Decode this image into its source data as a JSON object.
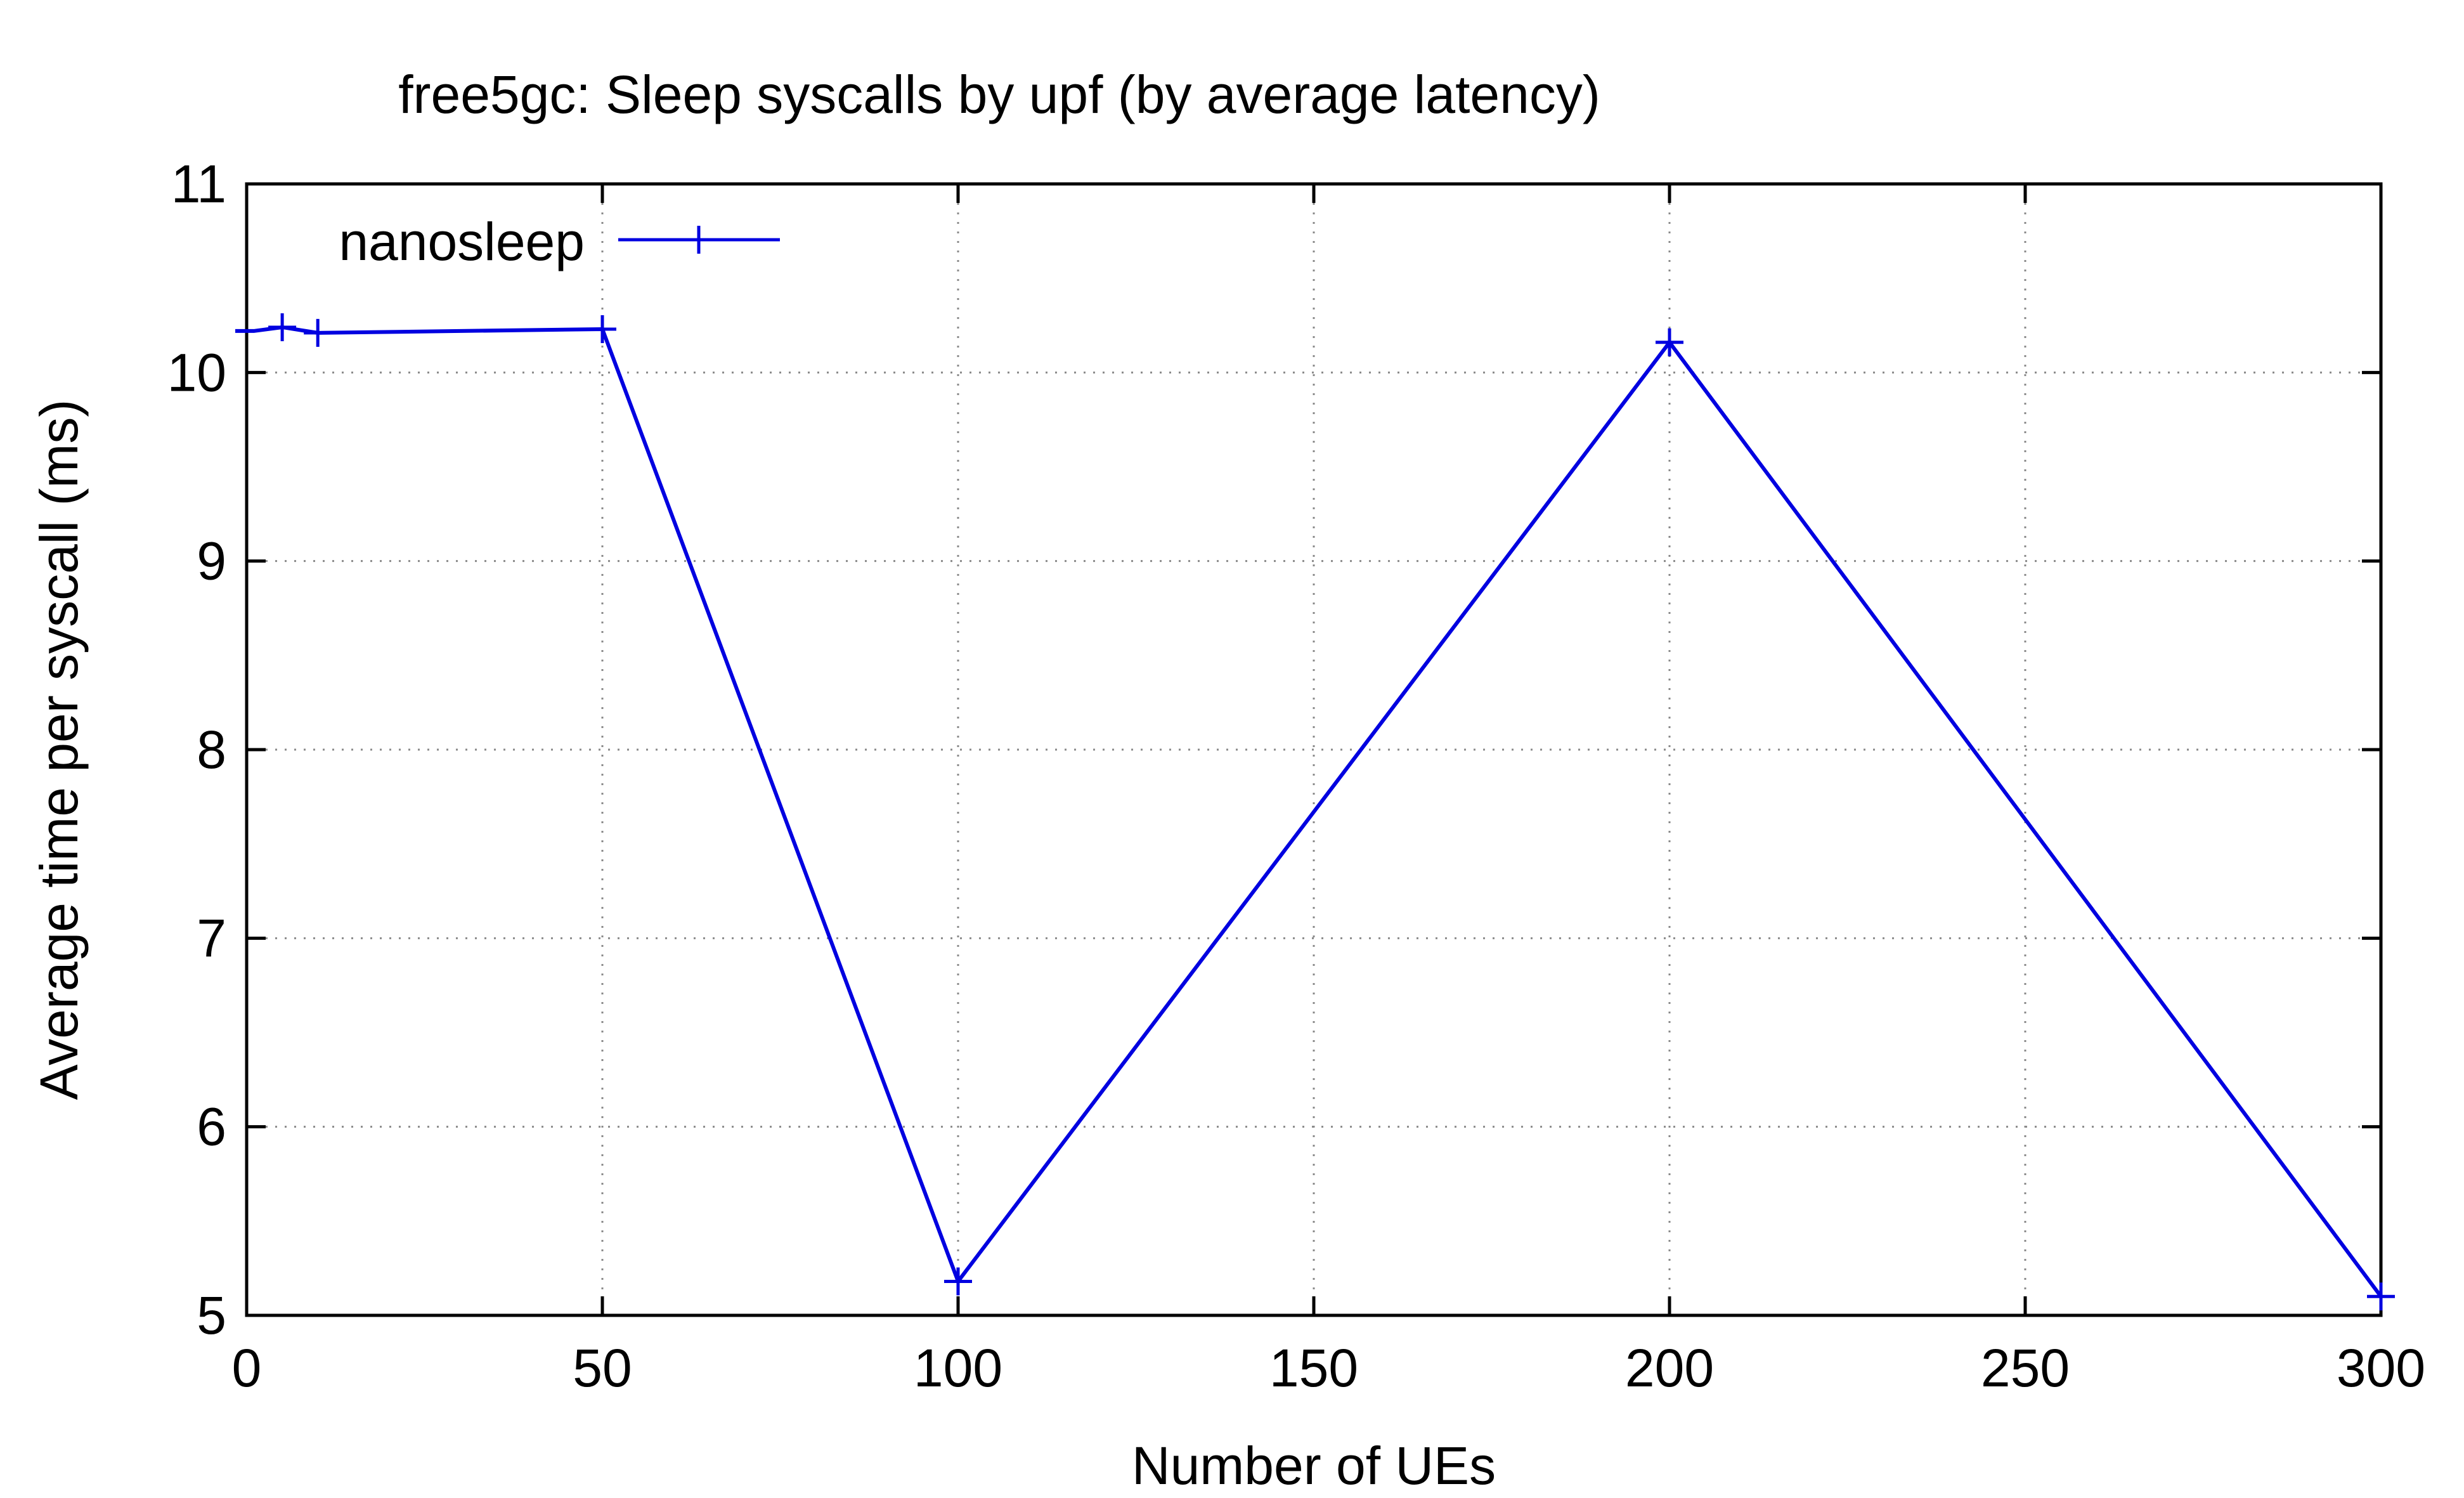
{
  "chart_data": {
    "type": "line",
    "title": "free5gc: Sleep syscalls by upf (by average latency)",
    "xlabel": "Number of UEs",
    "ylabel": "Average time per syscall (ms)",
    "xlim": [
      0,
      300
    ],
    "ylim": [
      5,
      11
    ],
    "xticks": [
      0,
      50,
      100,
      150,
      200,
      250,
      300
    ],
    "yticks": [
      5,
      6,
      7,
      8,
      9,
      10,
      11
    ],
    "grid": true,
    "legend_position": "top-left",
    "series": [
      {
        "name": "nanosleep",
        "color": "#0000e0",
        "marker": "plus",
        "x": [
          1,
          5,
          10,
          50,
          100,
          200,
          300
        ],
        "y": [
          10.22,
          10.24,
          10.21,
          10.23,
          5.18,
          10.16,
          5.1
        ]
      }
    ]
  }
}
